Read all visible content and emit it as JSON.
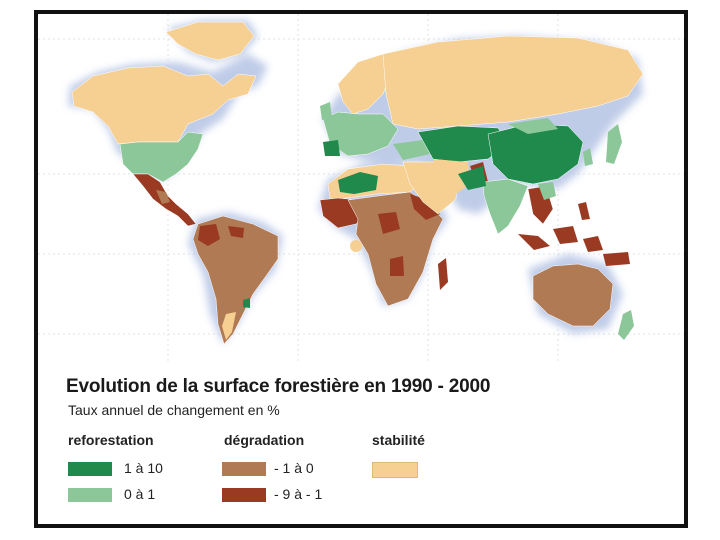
{
  "title": "Evolution de la surface forestière en 1990 - 2000",
  "subtitle": "Taux annuel de changement en %",
  "colors": {
    "dark_green": "#1f8a4c",
    "light_green": "#8cc79a",
    "brown": "#b07a55",
    "dark_red": "#9a3a22",
    "beige": "#f6cf93",
    "halo": "#b9c7e6"
  },
  "legend": {
    "reforestation": {
      "heading": "reforestation",
      "items": [
        {
          "label": "1 à 10"
        },
        {
          "label": "0 à 1"
        }
      ]
    },
    "degradation": {
      "heading": "dégradation",
      "items": [
        {
          "label": "- 1 à 0"
        },
        {
          "label": "- 9 à - 1"
        }
      ]
    },
    "stabilite": {
      "heading": "stabilité"
    }
  }
}
